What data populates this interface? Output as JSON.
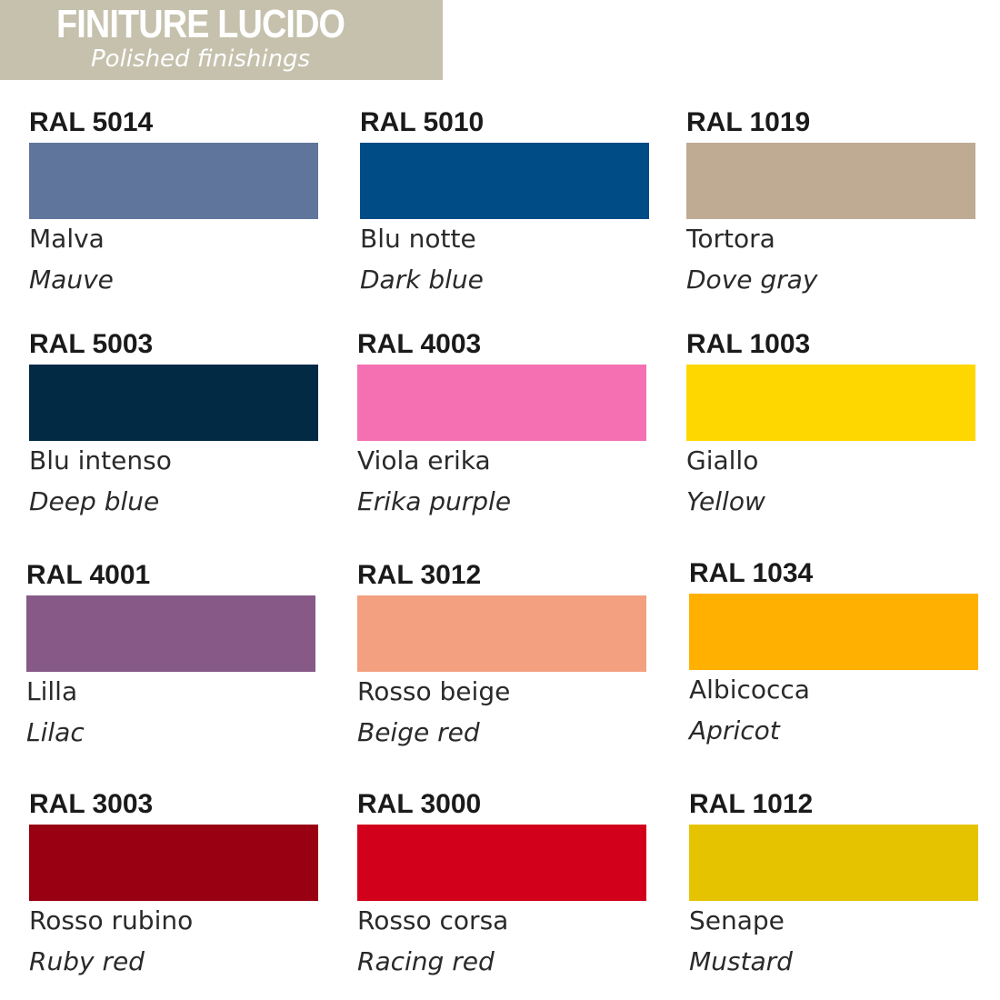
{
  "header": {
    "title": "FINITURE LUCIDO",
    "subtitle": "Polished finishings",
    "background": "#c5c1ad"
  },
  "colors": [
    {
      "code": "RAL 5014",
      "it": "Malva",
      "en": "Mauve",
      "hex": "#60759b"
    },
    {
      "code": "RAL 5010",
      "it": "Blu notte",
      "en": "Dark blue",
      "hex": "#004c87"
    },
    {
      "code": "RAL 1019",
      "it": "Tortora",
      "en": "Dove gray",
      "hex": "#bfab93"
    },
    {
      "code": "RAL 5003",
      "it": "Blu intenso",
      "en": "Deep blue",
      "hex": "#022a45"
    },
    {
      "code": "RAL 4003",
      "it": "Viola erika",
      "en": "Erika purple",
      "hex": "#f570b2"
    },
    {
      "code": "RAL 1003",
      "it": "Giallo",
      "en": "Yellow",
      "hex": "#fed700"
    },
    {
      "code": "RAL 4001",
      "it": "Lilla",
      "en": "Lilac",
      "hex": "#865987"
    },
    {
      "code": "RAL 3012",
      "it": "Rosso beige",
      "en": "Beige red",
      "hex": "#f3a081"
    },
    {
      "code": "RAL 1034",
      "it": "Albicocca",
      "en": "Apricot",
      "hex": "#ffb000"
    },
    {
      "code": "RAL 3003",
      "it": "Rosso rubino",
      "en": "Ruby red",
      "hex": "#990011"
    },
    {
      "code": "RAL 3000",
      "it": "Rosso corsa",
      "en": "Racing red",
      "hex": "#d2001a"
    },
    {
      "code": "RAL 1012",
      "it": "Senape",
      "en": "Mustard",
      "hex": "#e6c300"
    }
  ]
}
